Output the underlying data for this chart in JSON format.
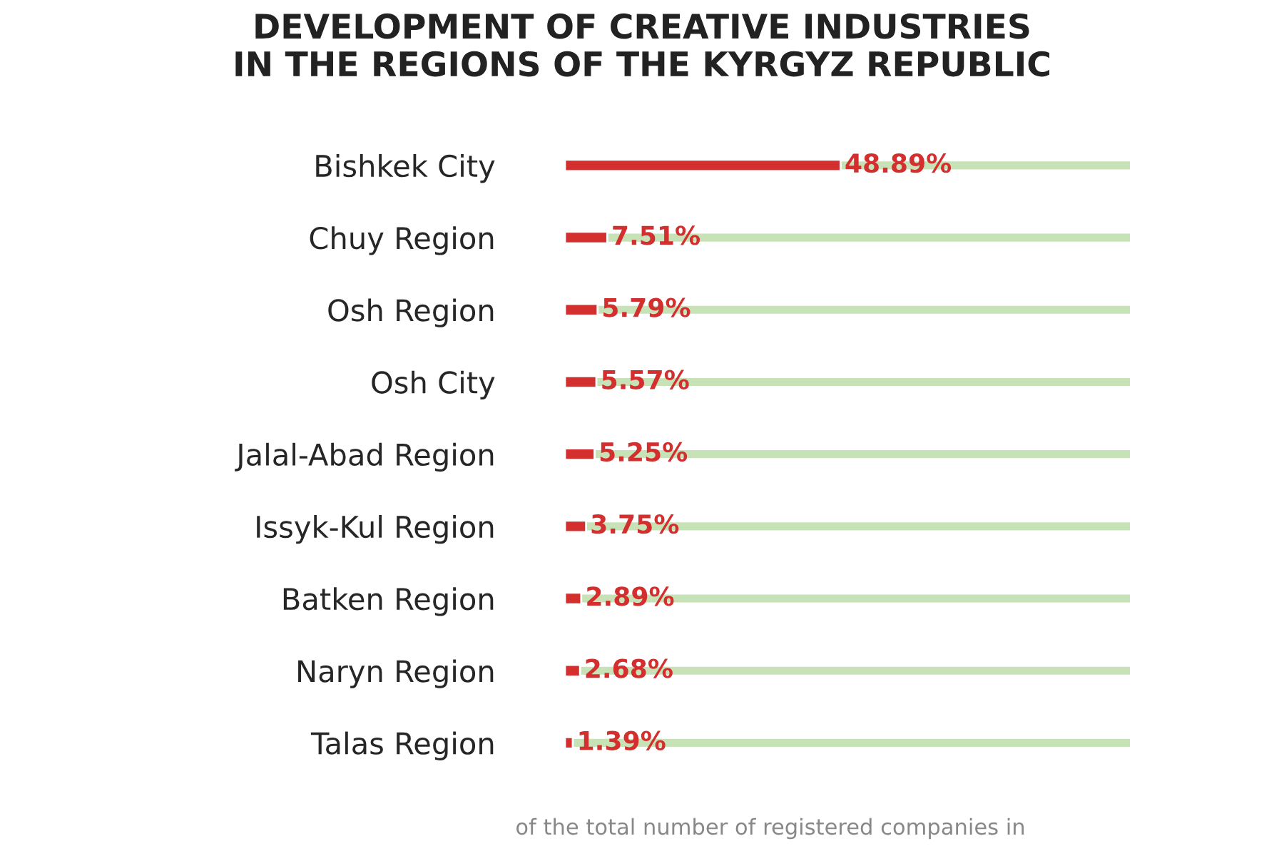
{
  "chart_data": {
    "type": "bar",
    "orientation": "horizontal",
    "title": "DEVELOPMENT OF CREATIVE INDUSTRIES\nIN THE REGIONS OF THE KYRGYZ REPUBLIC",
    "categories": [
      "Bishkek City",
      "Chuy Region",
      "Osh Region",
      "Osh City",
      "Jalal-Abad Region",
      "Issyk-Kul Region",
      "Batken Region",
      "Naryn Region",
      "Talas Region"
    ],
    "series": [
      {
        "color": "#d32f2f",
        "values": [
          48.89,
          7.51,
          5.79,
          5.57,
          5.25,
          3.75,
          2.89,
          2.68,
          1.39
        ],
        "value_labels": [
          "48.89%",
          "7.51%",
          "5.79%",
          "5.57%",
          "5.25%",
          "3.75%",
          "2.89%",
          "2.68%",
          "1.39%"
        ]
      }
    ],
    "annotations": [
      "of the total number of registered companies in"
    ]
  }
}
